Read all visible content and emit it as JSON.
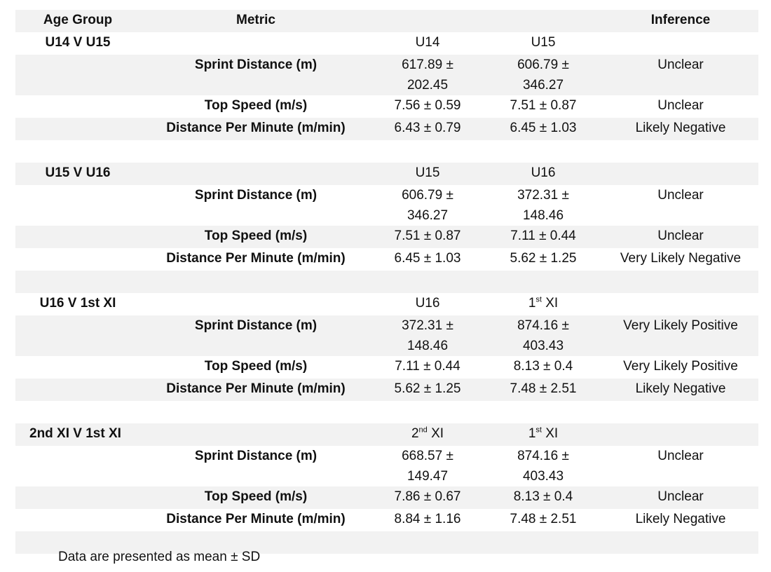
{
  "header": {
    "age_group": "Age Group",
    "metric": "Metric",
    "col_a": "",
    "col_b": "",
    "inference": "Inference"
  },
  "groups": [
    {
      "label": "U14 V U15",
      "a": "U14",
      "a_sup": "",
      "a_suffix": "",
      "b": "U15",
      "b_sup": "",
      "b_suffix": "",
      "rows": [
        {
          "metric": "Sprint Distance (m)",
          "a": "617.89 ± 202.45",
          "b": "606.79 ± 346.27",
          "inference": "Unclear"
        },
        {
          "metric": "Top Speed (m/s)",
          "a": "7.56 ± 0.59",
          "b": "7.51 ± 0.87",
          "inference": "Unclear"
        },
        {
          "metric": "Distance Per Minute (m/min)",
          "a": "6.43 ± 0.79",
          "b": "6.45 ± 1.03",
          "inference": "Likely Negative"
        }
      ]
    },
    {
      "label": "U15 V U16",
      "a": "U15",
      "a_sup": "",
      "a_suffix": "",
      "b": "U16",
      "b_sup": "",
      "b_suffix": "",
      "rows": [
        {
          "metric": "Sprint Distance (m)",
          "a": "606.79 ± 346.27",
          "b": "372.31 ± 148.46",
          "inference": "Unclear"
        },
        {
          "metric": "Top Speed (m/s)",
          "a": "7.51 ± 0.87",
          "b": "7.11 ± 0.44",
          "inference": "Unclear"
        },
        {
          "metric": "Distance Per Minute (m/min)",
          "a": "6.45 ± 1.03",
          "b": "5.62 ± 1.25",
          "inference": "Very Likely Negative"
        }
      ]
    },
    {
      "label": "U16 V 1st XI",
      "a": "U16",
      "a_sup": "",
      "a_suffix": "",
      "b": "1",
      "b_sup": "st",
      "b_suffix": " XI",
      "rows": [
        {
          "metric": "Sprint Distance (m)",
          "a": "372.31 ± 148.46",
          "b": "874.16 ± 403.43",
          "inference": "Very Likely Positive"
        },
        {
          "metric": "Top Speed (m/s)",
          "a": "7.11 ± 0.44",
          "b": "8.13 ± 0.4",
          "inference": "Very Likely Positive"
        },
        {
          "metric": "Distance Per Minute (m/min)",
          "a": "5.62 ± 1.25",
          "b": "7.48 ± 2.51",
          "inference": "Likely Negative"
        }
      ]
    },
    {
      "label": "2nd XI V 1st XI",
      "a": "2",
      "a_sup": "nd",
      "a_suffix": " XI",
      "b": "1",
      "b_sup": "st",
      "b_suffix": " XI",
      "rows": [
        {
          "metric": "Sprint Distance (m)",
          "a": "668.57 ± 149.47",
          "b": "874.16 ± 403.43",
          "inference": "Unclear"
        },
        {
          "metric": "Top Speed (m/s)",
          "a": "7.86 ± 0.67",
          "b": "8.13 ± 0.4",
          "inference": "Unclear"
        },
        {
          "metric": "Distance Per Minute (m/min)",
          "a": "8.84 ± 1.16",
          "b": "7.48 ± 2.51",
          "inference": "Likely Negative"
        }
      ]
    }
  ],
  "footnote": "Data are presented as mean ± SD"
}
